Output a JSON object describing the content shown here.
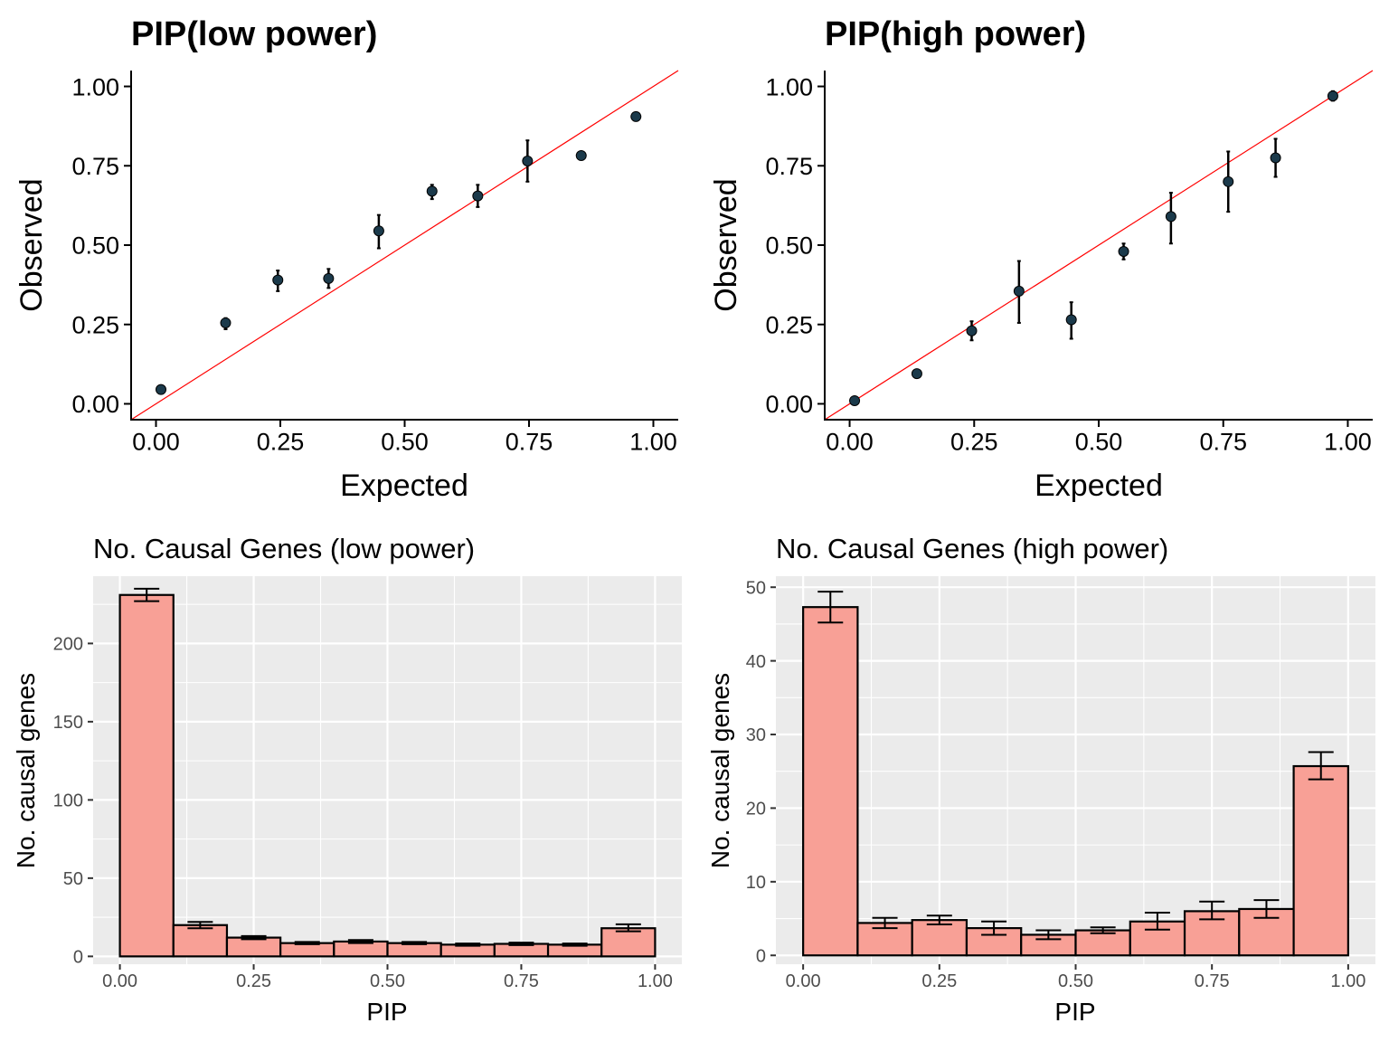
{
  "colors": {
    "point_fill": "#1b3a4b",
    "identity_line": "#ff0000",
    "bar_fill": "#f8a096",
    "panel_bg": "#ebebeb",
    "grid": "#ffffff"
  },
  "chart_data": [
    {
      "type": "scatter",
      "title": "PIP(low power)",
      "xlabel": "Expected",
      "ylabel": "Observed",
      "xlim": [
        -0.05,
        1.05
      ],
      "ylim": [
        -0.05,
        1.05
      ],
      "xticks": [
        "0.00",
        "0.25",
        "0.50",
        "0.75",
        "1.00"
      ],
      "yticks": [
        "0.00",
        "0.25",
        "0.50",
        "0.75",
        "1.00"
      ],
      "reference_line": "y = x",
      "points": [
        {
          "x": 0.01,
          "y": 0.045,
          "lo": 0.04,
          "hi": 0.05
        },
        {
          "x": 0.14,
          "y": 0.255,
          "lo": 0.235,
          "hi": 0.27
        },
        {
          "x": 0.245,
          "y": 0.39,
          "lo": 0.355,
          "hi": 0.42
        },
        {
          "x": 0.347,
          "y": 0.395,
          "lo": 0.365,
          "hi": 0.425
        },
        {
          "x": 0.448,
          "y": 0.545,
          "lo": 0.49,
          "hi": 0.595
        },
        {
          "x": 0.555,
          "y": 0.67,
          "lo": 0.645,
          "hi": 0.69
        },
        {
          "x": 0.647,
          "y": 0.655,
          "lo": 0.62,
          "hi": 0.69
        },
        {
          "x": 0.747,
          "y": 0.765,
          "lo": 0.7,
          "hi": 0.83
        },
        {
          "x": 0.855,
          "y": 0.782,
          "lo": 0.77,
          "hi": 0.795
        },
        {
          "x": 0.965,
          "y": 0.905,
          "lo": 0.898,
          "hi": 0.912
        }
      ]
    },
    {
      "type": "scatter",
      "title": "PIP(high power)",
      "xlabel": "Expected",
      "ylabel": "Observed",
      "xlim": [
        -0.05,
        1.05
      ],
      "ylim": [
        -0.05,
        1.05
      ],
      "xticks": [
        "0.00",
        "0.25",
        "0.50",
        "0.75",
        "1.00"
      ],
      "yticks": [
        "0.00",
        "0.25",
        "0.50",
        "0.75",
        "1.00"
      ],
      "reference_line": "y = x",
      "points": [
        {
          "x": 0.01,
          "y": 0.01,
          "lo": 0.005,
          "hi": 0.015
        },
        {
          "x": 0.135,
          "y": 0.095,
          "lo": 0.09,
          "hi": 0.1
        },
        {
          "x": 0.245,
          "y": 0.23,
          "lo": 0.2,
          "hi": 0.26
        },
        {
          "x": 0.34,
          "y": 0.355,
          "lo": 0.255,
          "hi": 0.45
        },
        {
          "x": 0.445,
          "y": 0.265,
          "lo": 0.205,
          "hi": 0.32
        },
        {
          "x": 0.55,
          "y": 0.48,
          "lo": 0.455,
          "hi": 0.505
        },
        {
          "x": 0.645,
          "y": 0.59,
          "lo": 0.505,
          "hi": 0.665
        },
        {
          "x": 0.76,
          "y": 0.7,
          "lo": 0.605,
          "hi": 0.795
        },
        {
          "x": 0.855,
          "y": 0.775,
          "lo": 0.715,
          "hi": 0.835
        },
        {
          "x": 0.97,
          "y": 0.97,
          "lo": 0.955,
          "hi": 0.985
        }
      ]
    },
    {
      "type": "bar",
      "title": "No. Causal Genes (low power)",
      "xlabel": "PIP",
      "ylabel": "No. causal genes",
      "xlim": [
        -0.05,
        1.05
      ],
      "ylim": [
        -5,
        243
      ],
      "xticks": [
        "0.00",
        "0.25",
        "0.50",
        "0.75",
        "1.00"
      ],
      "yticks": [
        "0",
        "50",
        "100",
        "150",
        "200"
      ],
      "bin_edges": [
        0,
        0.1,
        0.2,
        0.3,
        0.4,
        0.5,
        0.6,
        0.7,
        0.8,
        0.9,
        1.0
      ],
      "values": [
        231,
        20,
        12,
        8.5,
        9.5,
        8.5,
        7.5,
        8,
        7.5,
        18
      ],
      "err_lo": [
        227,
        18,
        11,
        7.8,
        8.5,
        7.8,
        6.8,
        7.2,
        6.8,
        16
      ],
      "err_hi": [
        235,
        22,
        13,
        9.2,
        10.5,
        9.2,
        8.2,
        8.8,
        8.2,
        20.5
      ]
    },
    {
      "type": "bar",
      "title": "No. Causal Genes (high power)",
      "xlabel": "PIP",
      "ylabel": "No. causal genes",
      "xlim": [
        -0.05,
        1.05
      ],
      "ylim": [
        -1.2,
        51.5
      ],
      "xticks": [
        "0.00",
        "0.25",
        "0.50",
        "0.75",
        "1.00"
      ],
      "yticks": [
        "0",
        "10",
        "20",
        "30",
        "40",
        "50"
      ],
      "bin_edges": [
        0,
        0.1,
        0.2,
        0.3,
        0.4,
        0.5,
        0.6,
        0.7,
        0.8,
        0.9,
        1.0
      ],
      "values": [
        47.3,
        4.4,
        4.8,
        3.7,
        2.8,
        3.4,
        4.6,
        6.0,
        6.3,
        25.7
      ],
      "err_lo": [
        45.2,
        3.7,
        4.2,
        2.8,
        2.2,
        3.0,
        3.5,
        4.9,
        5.1,
        23.9
      ],
      "err_hi": [
        49.4,
        5.1,
        5.4,
        4.6,
        3.4,
        3.8,
        5.8,
        7.3,
        7.5,
        27.6
      ]
    }
  ]
}
